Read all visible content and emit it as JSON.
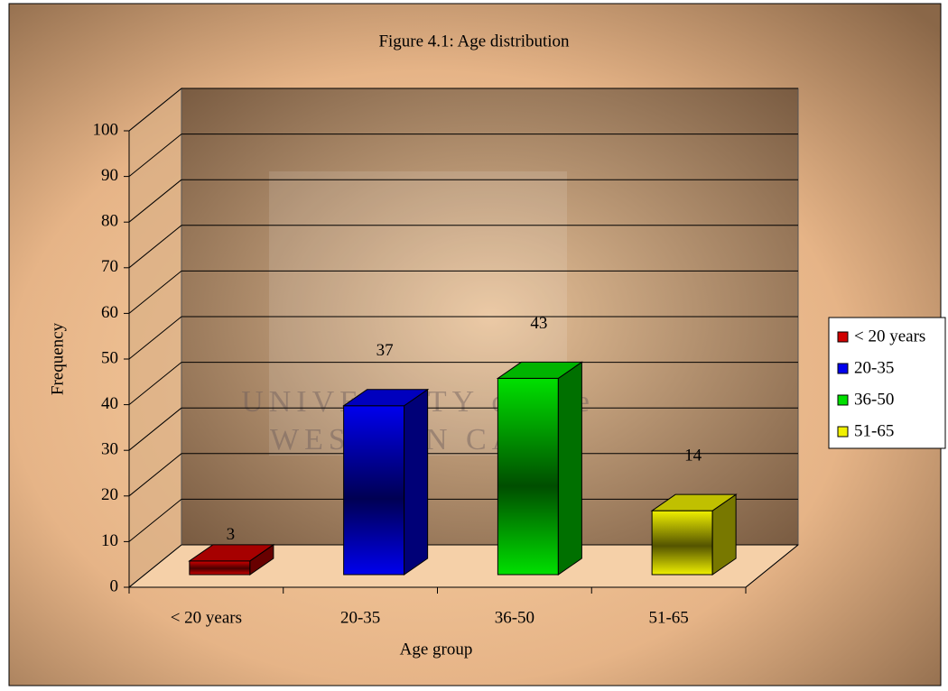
{
  "chart_data": {
    "type": "bar3d",
    "title": "Figure 4.1: Age distribution",
    "categories": [
      "< 20 years",
      "20-35",
      "36-50",
      "51-65"
    ],
    "values": [
      3,
      37,
      43,
      14
    ],
    "colors": [
      "#d00000",
      "#0000ee",
      "#00e000",
      "#f0f000"
    ],
    "ylim": [
      0,
      100
    ],
    "yticks": [
      0,
      10,
      20,
      30,
      40,
      50,
      60,
      70,
      80,
      90,
      100
    ],
    "xlabel": "Age group",
    "ylabel": "Frequency",
    "grid": true,
    "legend": "right",
    "watermark": [
      "UNIVERSITY of the",
      "WESTERN CAPE"
    ]
  }
}
